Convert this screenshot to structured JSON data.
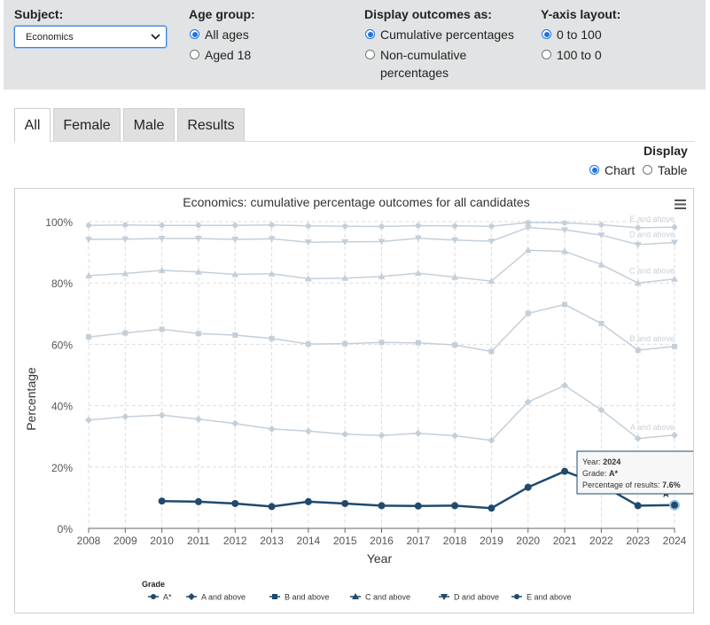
{
  "controls": {
    "subject": {
      "label": "Subject:",
      "value": "Economics"
    },
    "age_group": {
      "label": "Age group:",
      "options": [
        "All ages",
        "Aged 18"
      ],
      "selected": "All ages"
    },
    "display_outcomes": {
      "label": "Display outcomes as:",
      "options": [
        "Cumulative percentages",
        "Non-cumulative",
        "percentages"
      ],
      "selected": "Cumulative percentages"
    },
    "yaxis_layout": {
      "label": "Y-axis layout:",
      "options": [
        "0 to 100",
        "100 to 0"
      ],
      "selected": "0 to 100"
    }
  },
  "tabs": [
    {
      "label": "All",
      "active": true
    },
    {
      "label": "Female",
      "active": false
    },
    {
      "label": "Male",
      "active": false
    },
    {
      "label": "Results",
      "active": false
    }
  ],
  "display": {
    "label": "Display",
    "options": [
      "Chart",
      "Table"
    ],
    "selected": "Chart"
  },
  "menu_icon": "hamburger-menu-icon",
  "chart_data": {
    "type": "line",
    "title": "Economics: cumulative percentage outcomes for all candidates",
    "xlabel": "Year",
    "ylabel": "Percentage",
    "ylim": [
      0,
      100
    ],
    "yticks": [
      "0%",
      "20%",
      "40%",
      "60%",
      "80%",
      "100%"
    ],
    "x": [
      "2008",
      "2009",
      "2010",
      "2011",
      "2012",
      "2013",
      "2014",
      "2015",
      "2016",
      "2017",
      "2018",
      "2019",
      "2020",
      "2021",
      "2022",
      "2023",
      "2024"
    ],
    "grid": true,
    "legend_title": "Grade",
    "legend_position": "bottom",
    "highlight_color": "#1f4a6e",
    "faded_color": "#c4cfd9",
    "series": [
      {
        "name": "A*",
        "marker": "circle",
        "values": [
          null,
          null,
          8.9,
          8.7,
          8.1,
          7.1,
          8.7,
          8.1,
          7.4,
          7.3,
          7.4,
          6.6,
          13.4,
          18.6,
          14.2,
          7.4,
          7.6
        ]
      },
      {
        "name": "A and above",
        "marker": "diamond",
        "values": [
          35.3,
          36.4,
          36.9,
          35.6,
          34.2,
          32.4,
          31.7,
          30.7,
          30.3,
          31.0,
          30.2,
          28.7,
          41.2,
          46.6,
          38.6,
          29.3,
          30.4
        ]
      },
      {
        "name": "B and above",
        "marker": "square",
        "values": [
          62.4,
          63.7,
          64.9,
          63.5,
          63.0,
          61.9,
          60.1,
          60.2,
          60.6,
          60.5,
          59.8,
          57.7,
          70.1,
          73.0,
          66.8,
          58.1,
          59.3
        ]
      },
      {
        "name": "C and above",
        "marker": "triangle",
        "values": [
          82.4,
          83.1,
          84.1,
          83.6,
          82.8,
          83.0,
          81.4,
          81.6,
          82.1,
          83.2,
          81.9,
          80.6,
          90.7,
          90.3,
          86.0,
          80.0,
          81.3
        ]
      },
      {
        "name": "D and above",
        "marker": "triangle-down",
        "values": [
          94.2,
          94.3,
          94.5,
          94.5,
          94.2,
          94.4,
          93.3,
          93.4,
          93.5,
          94.6,
          94.0,
          93.6,
          98.1,
          97.3,
          95.6,
          92.5,
          93.2
        ]
      },
      {
        "name": "E and above",
        "marker": "circle",
        "values": [
          98.8,
          98.9,
          98.8,
          98.8,
          98.8,
          98.9,
          98.6,
          98.5,
          98.4,
          98.7,
          98.6,
          98.5,
          99.7,
          99.6,
          99.0,
          98.0,
          98.2
        ]
      }
    ],
    "faded_labels": [
      "E and above",
      "D and above",
      "C and above",
      "B and above",
      "A and above"
    ],
    "point_label": "A*",
    "tooltip": {
      "year_label": "Year:",
      "year": "2024",
      "grade_label": "Grade:",
      "grade": "A*",
      "pct_label": "Percentage of results:",
      "pct": "7.6%"
    }
  }
}
